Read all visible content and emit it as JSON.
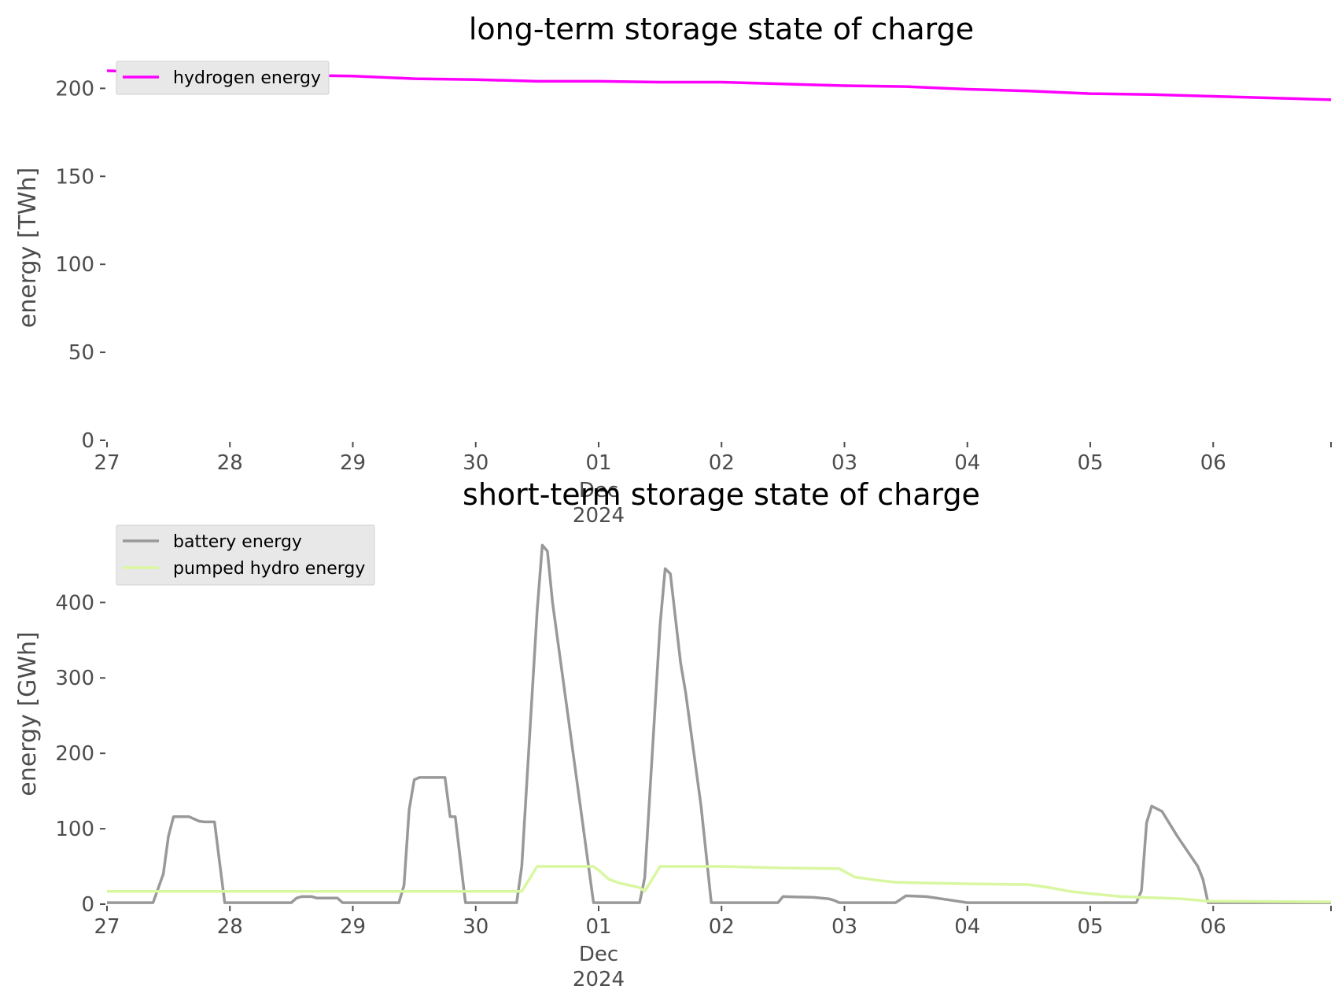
{
  "chart_data": [
    {
      "type": "line",
      "title": "long-term storage state of charge",
      "ylabel": "energy [TWh]",
      "xlabel": "",
      "ylim": [
        0,
        210
      ],
      "xlim": [
        "2024-11-27",
        "2024-12-06 23:00"
      ],
      "yticks": [
        "0",
        "50",
        "100",
        "150",
        "200"
      ],
      "xticks": [
        "27",
        "28",
        "29",
        "30",
        "01",
        "02",
        "03",
        "04",
        "05",
        "06"
      ],
      "xtick_sublabel": [
        "Dec",
        "2024"
      ],
      "legend_position": "upper-left",
      "grid": false,
      "series": [
        {
          "name": "hydrogen energy",
          "color": "#ff00ff",
          "points": [
            [
              "2024-11-27",
              210
            ],
            [
              "2024-11-28",
              208
            ],
            [
              "2024-11-29",
              207
            ],
            [
              "2024-11-29 12:00",
              205.5
            ],
            [
              "2024-11-30",
              205
            ],
            [
              "2024-11-30 12:00",
              204
            ],
            [
              "2024-12-01",
              204
            ],
            [
              "2024-12-01 12:00",
              203.5
            ],
            [
              "2024-12-02",
              203.5
            ],
            [
              "2024-12-02 12:00",
              202.5
            ],
            [
              "2024-12-03",
              201.5
            ],
            [
              "2024-12-03 12:00",
              201
            ],
            [
              "2024-12-04",
              199.5
            ],
            [
              "2024-12-04 12:00",
              198.5
            ],
            [
              "2024-12-05",
              197
            ],
            [
              "2024-12-05 12:00",
              196.5
            ],
            [
              "2024-12-06",
              195.5
            ],
            [
              "2024-12-06 12:00",
              194.5
            ],
            [
              "2024-12-06 23:00",
              193.5
            ]
          ]
        }
      ]
    },
    {
      "type": "line",
      "title": "short-term storage state of charge",
      "ylabel": "energy [GWh]",
      "xlabel": "",
      "ylim": [
        0,
        490
      ],
      "xlim": [
        "2024-11-27",
        "2024-12-06 23:00"
      ],
      "yticks": [
        "0",
        "100",
        "200",
        "300",
        "400"
      ],
      "xticks": [
        "27",
        "28",
        "29",
        "30",
        "01",
        "02",
        "03",
        "04",
        "05",
        "06"
      ],
      "xtick_sublabel": [
        "Dec",
        "2024"
      ],
      "legend_position": "upper-left",
      "grid": false,
      "series": [
        {
          "name": "battery energy",
          "color": "#999999",
          "points": [
            [
              "2024-11-27",
              2
            ],
            [
              "2024-11-27 09:00",
              2
            ],
            [
              "2024-11-27 11:00",
              40
            ],
            [
              "2024-11-27 12:00",
              90
            ],
            [
              "2024-11-27 13:00",
              116
            ],
            [
              "2024-11-27 16:00",
              116
            ],
            [
              "2024-11-27 18:00",
              110
            ],
            [
              "2024-11-27 19:00",
              109
            ],
            [
              "2024-11-27 21:00",
              109
            ],
            [
              "2024-11-27 22:00",
              55
            ],
            [
              "2024-11-27 23:00",
              2
            ],
            [
              "2024-11-28 12:00",
              2
            ],
            [
              "2024-11-28 13:00",
              8
            ],
            [
              "2024-11-28 14:00",
              10
            ],
            [
              "2024-11-28 16:00",
              10
            ],
            [
              "2024-11-28 17:00",
              8
            ],
            [
              "2024-11-28 21:00",
              8
            ],
            [
              "2024-11-28 22:00",
              2
            ],
            [
              "2024-11-29 09:00",
              2
            ],
            [
              "2024-11-29 10:00",
              25
            ],
            [
              "2024-11-29 11:00",
              125
            ],
            [
              "2024-11-29 12:00",
              165
            ],
            [
              "2024-11-29 13:00",
              168
            ],
            [
              "2024-11-29 18:00",
              168
            ],
            [
              "2024-11-29 19:00",
              116
            ],
            [
              "2024-11-29 20:00",
              116
            ],
            [
              "2024-11-29 22:00",
              2
            ],
            [
              "2024-11-30 08:00",
              2
            ],
            [
              "2024-11-30 09:00",
              50
            ],
            [
              "2024-11-30 12:00",
              390
            ],
            [
              "2024-11-30 13:00",
              476
            ],
            [
              "2024-11-30 14:00",
              468
            ],
            [
              "2024-11-30 15:00",
              400
            ],
            [
              "2024-11-30 23:00",
              2
            ],
            [
              "2024-12-01 08:00",
              2
            ],
            [
              "2024-12-01 09:00",
              35
            ],
            [
              "2024-12-01 12:00",
              370
            ],
            [
              "2024-12-01 13:00",
              445
            ],
            [
              "2024-12-01 14:00",
              438
            ],
            [
              "2024-12-01 16:00",
              320
            ],
            [
              "2024-12-01 17:00",
              280
            ],
            [
              "2024-12-01 20:00",
              130
            ],
            [
              "2024-12-01 22:00",
              2
            ],
            [
              "2024-12-02 11:00",
              2
            ],
            [
              "2024-12-02 12:00",
              10
            ],
            [
              "2024-12-02 18:00",
              9
            ],
            [
              "2024-12-02 21:00",
              7
            ],
            [
              "2024-12-02 22:00",
              5
            ],
            [
              "2024-12-02 23:00",
              2
            ],
            [
              "2024-12-03 10:00",
              2
            ],
            [
              "2024-12-03 12:00",
              11
            ],
            [
              "2024-12-03 16:00",
              10
            ],
            [
              "2024-12-03 20:00",
              6
            ],
            [
              "2024-12-03 22:00",
              4
            ],
            [
              "2024-12-04",
              2
            ],
            [
              "2024-12-05 09:00",
              2
            ],
            [
              "2024-12-05 10:00",
              18
            ],
            [
              "2024-12-05 11:00",
              108
            ],
            [
              "2024-12-05 12:00",
              130
            ],
            [
              "2024-12-05 14:00",
              123
            ],
            [
              "2024-12-05 17:00",
              90
            ],
            [
              "2024-12-05 21:00",
              50
            ],
            [
              "2024-12-05 22:00",
              33
            ],
            [
              "2024-12-05 23:00",
              2
            ],
            [
              "2024-12-06 23:00",
              2
            ]
          ]
        },
        {
          "name": "pumped hydro energy",
          "color": "#d9f7a1",
          "points": [
            [
              "2024-11-27",
              17
            ],
            [
              "2024-11-30 09:00",
              17
            ],
            [
              "2024-11-30 12:00",
              50
            ],
            [
              "2024-11-30 23:00",
              50
            ],
            [
              "2024-12-01",
              45
            ],
            [
              "2024-12-01 02:00",
              33
            ],
            [
              "2024-12-01 04:00",
              28
            ],
            [
              "2024-12-01 06:00",
              25
            ],
            [
              "2024-12-01 08:00",
              22
            ],
            [
              "2024-12-01 09:00",
              17
            ],
            [
              "2024-12-01 12:00",
              50
            ],
            [
              "2024-12-02",
              50
            ],
            [
              "2024-12-02 06:00",
              49
            ],
            [
              "2024-12-02 12:00",
              48
            ],
            [
              "2024-12-02 23:00",
              47
            ],
            [
              "2024-12-03 02:00",
              36
            ],
            [
              "2024-12-03 06:00",
              32
            ],
            [
              "2024-12-03 10:00",
              29
            ],
            [
              "2024-12-03 16:00",
              28
            ],
            [
              "2024-12-04",
              27
            ],
            [
              "2024-12-04 12:00",
              26
            ],
            [
              "2024-12-04 16:00",
              22
            ],
            [
              "2024-12-04 20:00",
              17
            ],
            [
              "2024-12-05",
              14
            ],
            [
              "2024-12-05 06:00",
              10
            ],
            [
              "2024-12-05 14:00",
              8
            ],
            [
              "2024-12-05 18:00",
              7
            ],
            [
              "2024-12-05 23:00",
              4
            ],
            [
              "2024-12-06 23:00",
              3
            ]
          ]
        }
      ]
    }
  ]
}
